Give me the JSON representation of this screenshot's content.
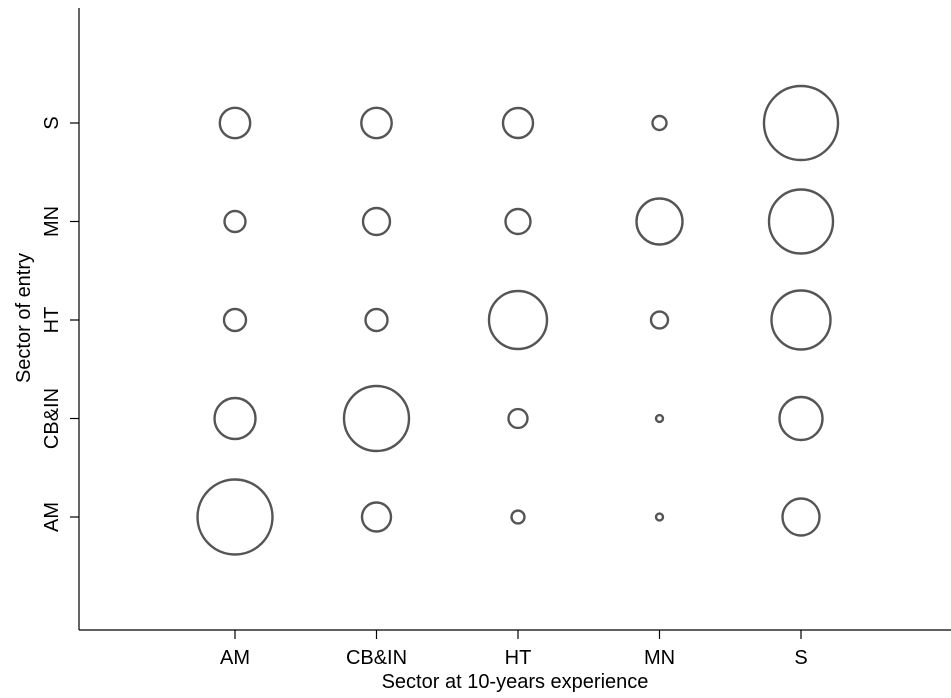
{
  "chart_data": {
    "type": "scatter",
    "subtype": "bubble",
    "xlabel": "Sector at 10-years experience",
    "ylabel": "Sector of entry",
    "x_categories": [
      "AM",
      "CB&IN",
      "HT",
      "MN",
      "S"
    ],
    "y_categories": [
      "AM",
      "CB&IN",
      "HT",
      "MN",
      "S"
    ],
    "marker": "hollow circle",
    "marker_color": "#555555",
    "grid": false,
    "legend": "none",
    "size_scale": "relative",
    "points": [
      {
        "entry": "S",
        "at10": "AM",
        "size": 231
      },
      {
        "entry": "S",
        "at10": "CB&IN",
        "size": 231
      },
      {
        "entry": "S",
        "at10": "HT",
        "size": 225
      },
      {
        "entry": "S",
        "at10": "MN",
        "size": 49
      },
      {
        "entry": "S",
        "at10": "S",
        "size": 1369
      },
      {
        "entry": "MN",
        "at10": "AM",
        "size": 110
      },
      {
        "entry": "MN",
        "at10": "CB&IN",
        "size": 182
      },
      {
        "entry": "MN",
        "at10": "HT",
        "size": 156
      },
      {
        "entry": "MN",
        "at10": "MN",
        "size": 529
      },
      {
        "entry": "MN",
        "at10": "S",
        "size": 1024
      },
      {
        "entry": "HT",
        "at10": "AM",
        "size": 121
      },
      {
        "entry": "HT",
        "at10": "CB&IN",
        "size": 121
      },
      {
        "entry": "HT",
        "at10": "HT",
        "size": 841
      },
      {
        "entry": "HT",
        "at10": "MN",
        "size": 72
      },
      {
        "entry": "HT",
        "at10": "S",
        "size": 870
      },
      {
        "entry": "CB&IN",
        "at10": "AM",
        "size": 420
      },
      {
        "entry": "CB&IN",
        "at10": "CB&IN",
        "size": 1056
      },
      {
        "entry": "CB&IN",
        "at10": "HT",
        "size": 90
      },
      {
        "entry": "CB&IN",
        "at10": "MN",
        "size": 12
      },
      {
        "entry": "CB&IN",
        "at10": "S",
        "size": 462
      },
      {
        "entry": "AM",
        "at10": "AM",
        "size": 1406
      },
      {
        "entry": "AM",
        "at10": "CB&IN",
        "size": 210
      },
      {
        "entry": "AM",
        "at10": "HT",
        "size": 42
      },
      {
        "entry": "AM",
        "at10": "MN",
        "size": 12
      },
      {
        "entry": "AM",
        "at10": "S",
        "size": 342
      }
    ]
  }
}
